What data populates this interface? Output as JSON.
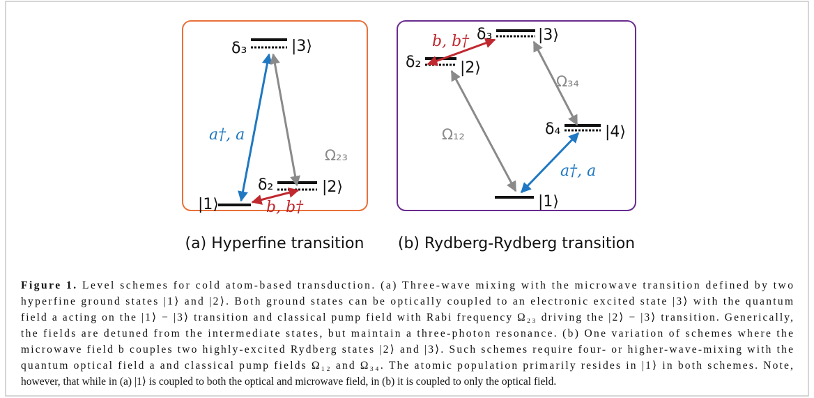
{
  "panel_a": {
    "levels": [
      "|3⟩",
      "|2⟩",
      "|1⟩"
    ],
    "detunings": [
      "δ₃",
      "δ₂"
    ],
    "couplings": [
      "a†, a",
      "Ω₂₃",
      "b, b†"
    ],
    "subcaption": "(a) Hyperfine transition"
  },
  "panel_b": {
    "levels": [
      "|3⟩",
      "|2⟩",
      "|4⟩",
      "|1⟩"
    ],
    "detunings": [
      "δ₃",
      "δ₂",
      "δ₄"
    ],
    "couplings": [
      "b, b†",
      "Ω₁₂",
      "Ω₃₄",
      "a†, a"
    ],
    "subcaption": "(b) Rydberg-Rydberg transition"
  },
  "caption": {
    "label": "Figure 1.",
    "lines": [
      " Level schemes for cold atom-based transduction. (a) Three-wave mixing with the microwave transition defined by two",
      "hyperfine ground states |1⟩ and |2⟩. Both ground states can be optically coupled to an electronic excited state |3⟩ with the quantum",
      "field a acting on the |1⟩ − |3⟩ transition and classical pump field with Rabi frequency Ω₂₃ driving the |2⟩ − |3⟩ transition. Generically,",
      "the fields are detuned from the intermediate states, but maintain a three-photon resonance. (b) One variation of schemes where the",
      "microwave field b couples two highly-excited Rydberg states |2⟩ and |3⟩. Such schemes require four- or higher-wave-mixing with the",
      "quantum optical field a and classical pump fields Ω₁₂ and Ω₃₄. The atomic population primarily resides in |1⟩ in both schemes. Note,",
      "however, that while in (a) |1⟩ is coupled to both the optical and microwave field, in (b) it is coupled to only the optical field."
    ]
  }
}
